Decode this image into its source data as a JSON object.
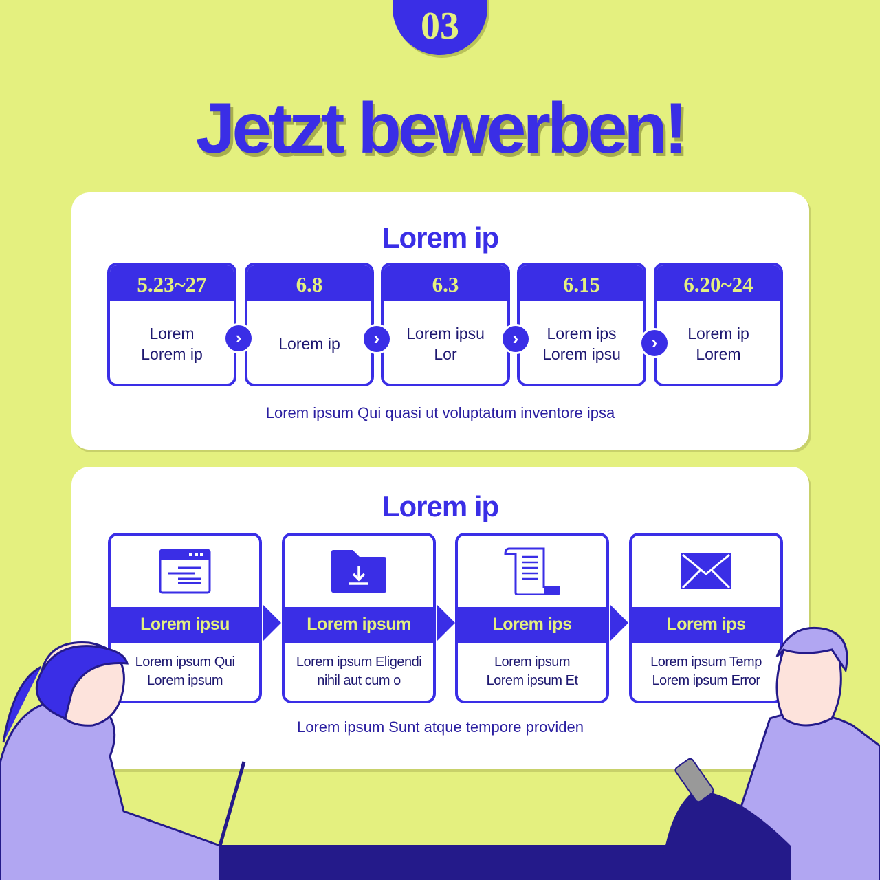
{
  "badge": "03",
  "title": "Jetzt bewerben!",
  "schedule": {
    "heading": "Lorem ip",
    "steps": [
      {
        "date": "5.23~27",
        "text": "Lorem\nLorem ip"
      },
      {
        "date": "6.8",
        "text": "Lorem ip"
      },
      {
        "date": "6.3",
        "text": "Lorem ipsu\nLor"
      },
      {
        "date": "6.15",
        "text": "Lorem ips\nLorem ipsu"
      },
      {
        "date": "6.20~24",
        "text": "Lorem ip\nLorem"
      }
    ],
    "note": "Lorem ipsum Qui quasi ut voluptatum inventore ipsa"
  },
  "process": {
    "heading": "Lorem ip",
    "steps": [
      {
        "icon": "browser-window-icon",
        "title": "Lorem ipsu",
        "text": "Lorem ipsum Qui\nLorem ipsum"
      },
      {
        "icon": "folder-download-icon",
        "title": "Lorem ipsum",
        "text": "Lorem ipsum Eligendi\nnihil aut cum o"
      },
      {
        "icon": "document-scroll-icon",
        "title": "Lorem ips",
        "text": "Lorem ipsum\nLorem ipsum Et"
      },
      {
        "icon": "envelope-icon",
        "title": "Lorem ips",
        "text": "Lorem ipsum Temp\nLorem ipsum Error"
      }
    ],
    "note": "Lorem ipsum Sunt atque tempore providen"
  },
  "colors": {
    "background": "#e4f07f",
    "accent": "#3a2ee6",
    "text": "#1e1870",
    "floor": "#241a8a"
  }
}
